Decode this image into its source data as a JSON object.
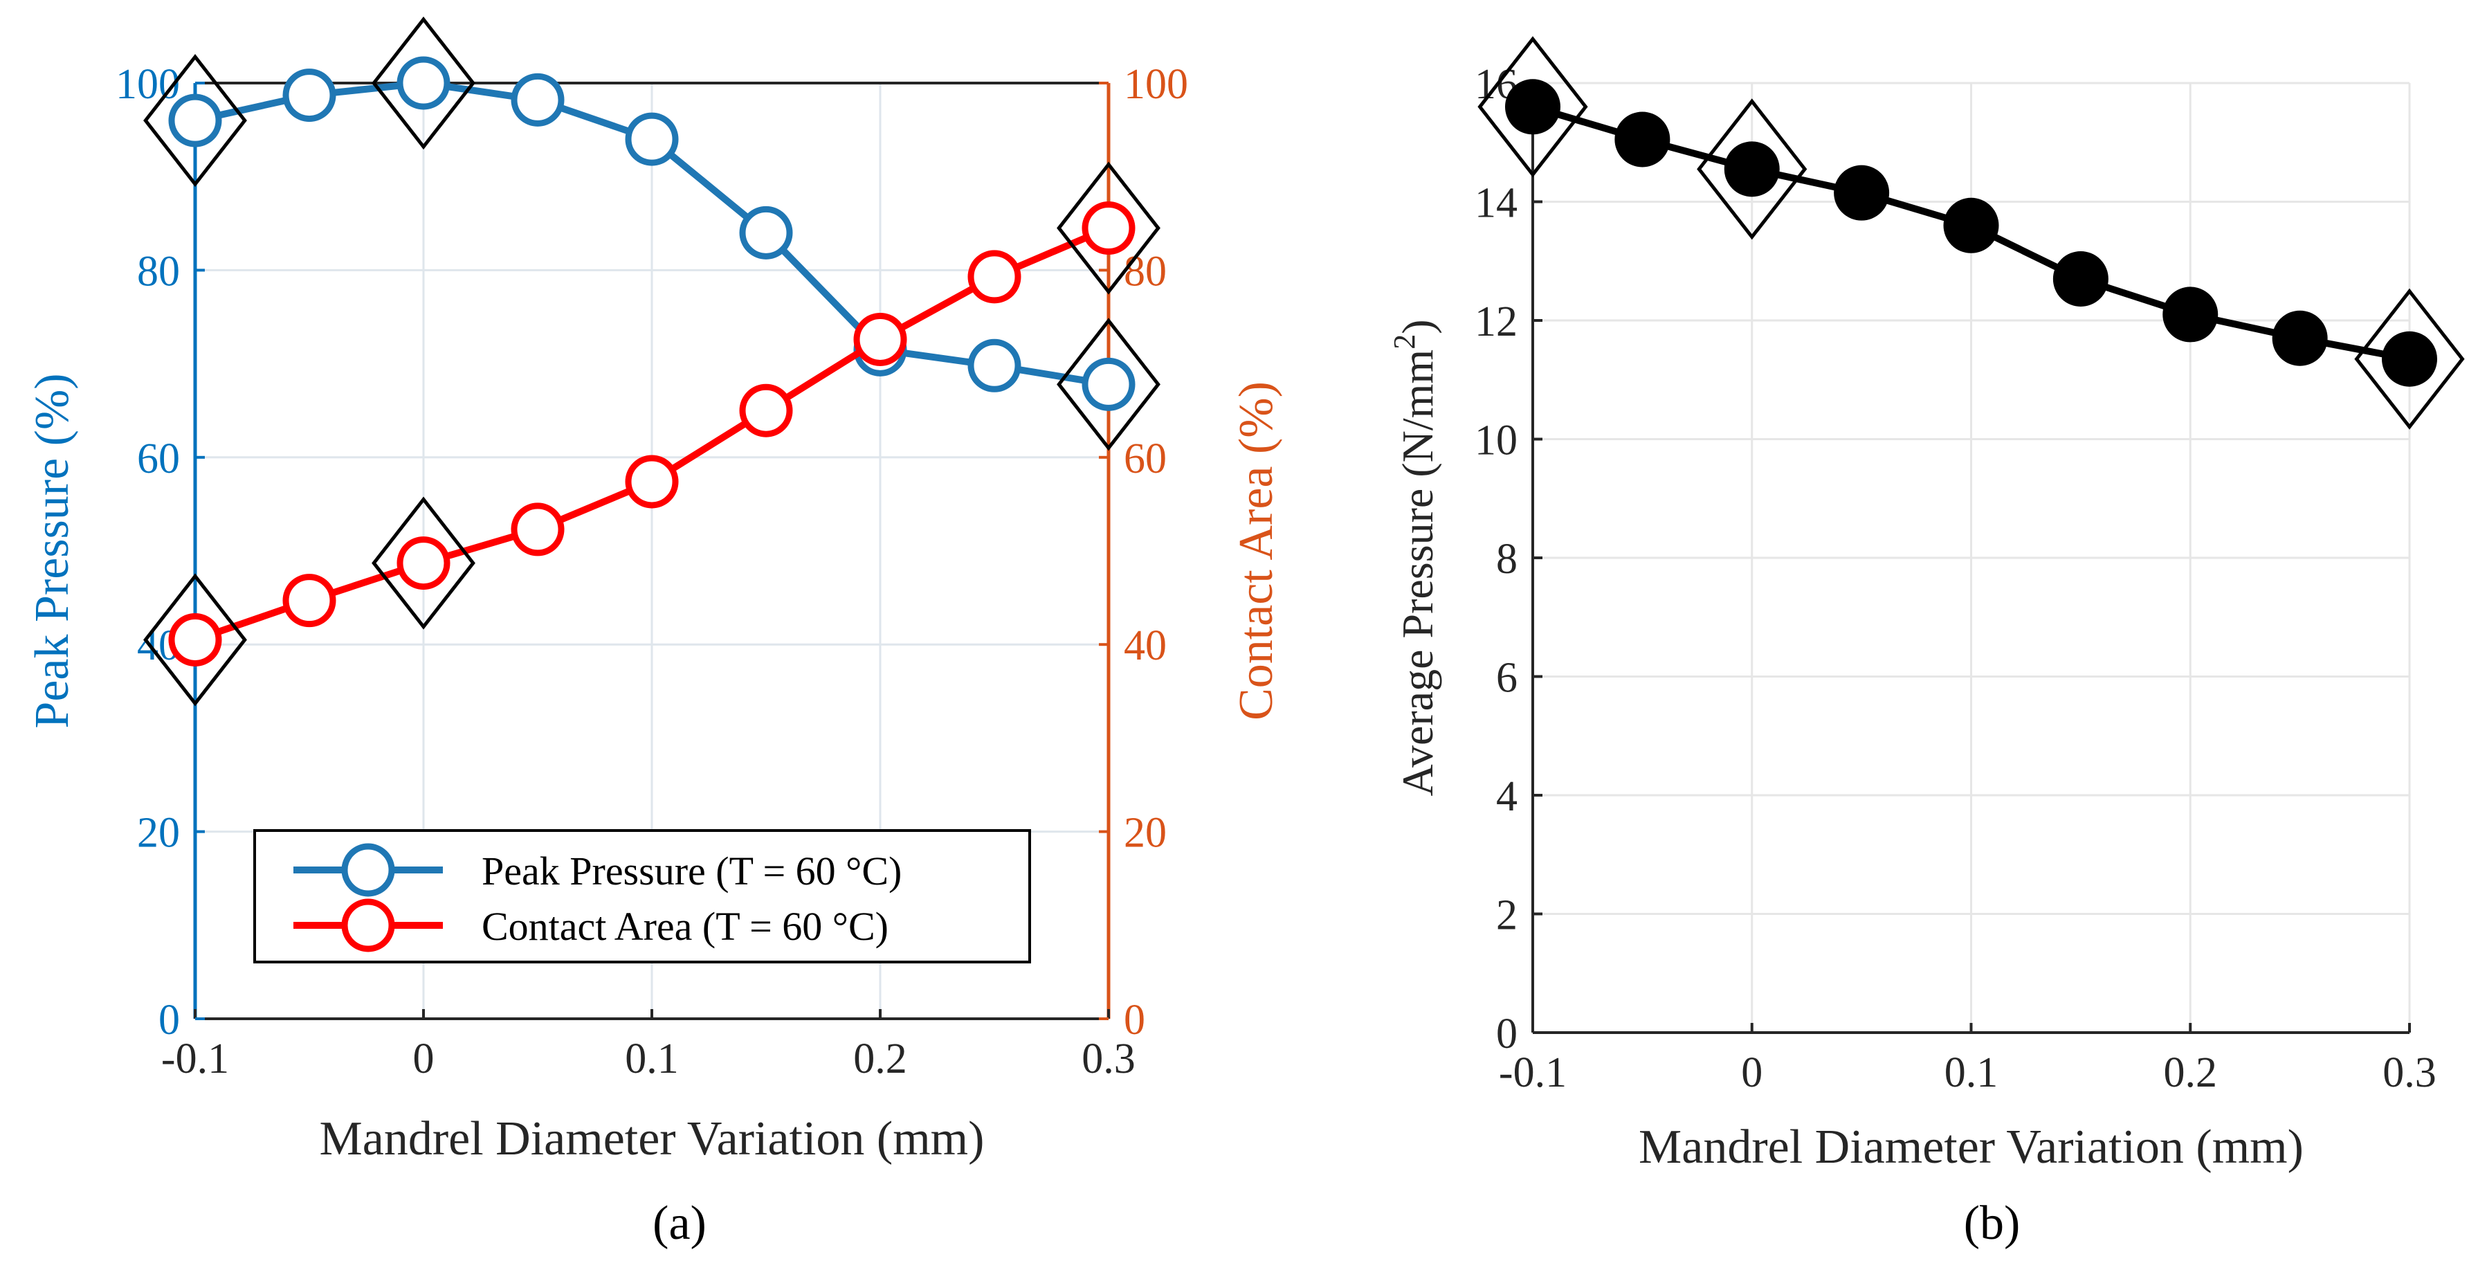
{
  "chart_data": [
    {
      "panel_label": "(a)",
      "type": "line",
      "xlabel": "Mandrel Diameter Variation (mm)",
      "ylabel_left": "Peak Pressure (%)",
      "ylabel_right": "Contact Area (%)",
      "xlim": [
        -0.1,
        0.3
      ],
      "ylim_left": [
        0,
        100
      ],
      "ylim_right": [
        0,
        100
      ],
      "x_ticks": [
        -0.1,
        0,
        0.1,
        0.2,
        0.3
      ],
      "x_tick_labels": [
        "-0.1",
        "0",
        "0.1",
        "0.2",
        "0.3"
      ],
      "y_ticks_left": [
        0,
        20,
        40,
        60,
        80,
        100
      ],
      "y_tick_labels_left": [
        "0",
        "20",
        "40",
        "60",
        "80",
        "100"
      ],
      "y_ticks_right": [
        0,
        20,
        40,
        60,
        80,
        100
      ],
      "y_tick_labels_right": [
        "0",
        "20",
        "40",
        "60",
        "80",
        "100"
      ],
      "grid": true,
      "legend_position": "bottom-center",
      "x": [
        -0.1,
        -0.05,
        0,
        0.05,
        0.1,
        0.15,
        0.2,
        0.25,
        0.3
      ],
      "series": [
        {
          "name": "Peak Pressure (T = 60 °C)",
          "axis": "left",
          "color": "#1f77b4",
          "marker": "open-circle",
          "values": [
            96,
            98.7,
            100,
            98.2,
            94,
            84,
            71.5,
            69.8,
            67.8
          ],
          "highlight_x": [
            -0.1,
            0,
            0.3
          ]
        },
        {
          "name": "Contact Area  (T = 60 °C)",
          "axis": "right",
          "color": "#ff0000",
          "marker": "open-circle",
          "values": [
            40.5,
            44.7,
            48.7,
            52.3,
            57.4,
            65,
            72.6,
            79.3,
            84.5
          ],
          "highlight_x": [
            -0.1,
            0,
            0.3
          ]
        }
      ],
      "colors": {
        "left_axis": "#0072bd",
        "right_axis": "#d95319",
        "grid": "#dfe6ec"
      }
    },
    {
      "panel_label": "(b)",
      "type": "line",
      "xlabel": "Mandrel Diameter Variation (mm)",
      "ylabel": "Average Pressure (N/mm",
      "ylabel_sup": "2",
      "ylabel_end": ")",
      "xlim": [
        -0.1,
        0.3
      ],
      "ylim": [
        0,
        16
      ],
      "x_ticks": [
        -0.1,
        0,
        0.1,
        0.2,
        0.3
      ],
      "x_tick_labels": [
        "-0.1",
        "0",
        "0.1",
        "0.2",
        "0.3"
      ],
      "y_ticks": [
        0,
        2,
        4,
        6,
        8,
        10,
        12,
        14,
        16
      ],
      "y_tick_labels": [
        "0",
        "2",
        "4",
        "6",
        "8",
        "10",
        "12",
        "14",
        "16"
      ],
      "grid": true,
      "x": [
        -0.1,
        -0.05,
        0,
        0.05,
        0.1,
        0.15,
        0.2,
        0.25,
        0.3
      ],
      "series": [
        {
          "color": "#000000",
          "marker": "filled-circle",
          "values": [
            15.6,
            15.05,
            14.55,
            14.15,
            13.6,
            12.7,
            12.1,
            11.7,
            11.35
          ],
          "highlight_x": [
            -0.1,
            0,
            0.3
          ]
        }
      ],
      "colors": {
        "axis": "#262626",
        "grid": "#e6e6e6"
      }
    }
  ]
}
